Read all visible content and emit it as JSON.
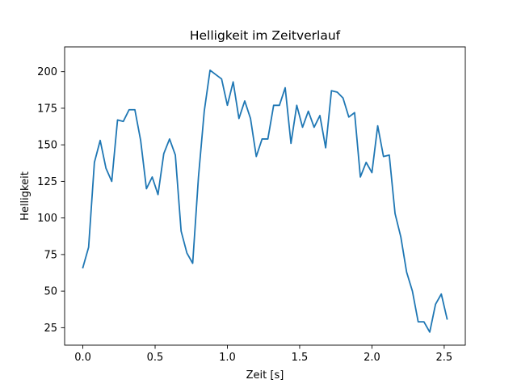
{
  "chart_data": {
    "type": "line",
    "title": "Helligkeit im Zeitverlauf",
    "xlabel": "Zeit [s]",
    "ylabel": "Helligkeit",
    "xlim": [
      -0.126,
      2.646
    ],
    "ylim": [
      13.05,
      216.95
    ],
    "xticks": [
      0.0,
      0.5,
      1.0,
      1.5,
      2.0,
      2.5
    ],
    "xtick_labels": [
      "0.0",
      "0.5",
      "1.0",
      "1.5",
      "2.0",
      "2.5"
    ],
    "yticks": [
      25,
      50,
      75,
      100,
      125,
      150,
      175,
      200
    ],
    "ytick_labels": [
      "25",
      "50",
      "75",
      "100",
      "125",
      "150",
      "175",
      "200"
    ],
    "grid": false,
    "series": [
      {
        "color": "#1f77b4",
        "x": [
          0.0,
          0.04,
          0.08,
          0.12,
          0.16,
          0.2,
          0.24,
          0.28,
          0.32,
          0.36,
          0.4,
          0.44,
          0.48,
          0.52,
          0.56,
          0.6,
          0.64,
          0.68,
          0.72,
          0.76,
          0.8,
          0.84,
          0.88,
          0.92,
          0.96,
          1.0,
          1.04,
          1.08,
          1.12,
          1.16,
          1.2,
          1.24,
          1.28,
          1.32,
          1.36,
          1.4,
          1.44,
          1.48,
          1.52,
          1.56,
          1.6,
          1.64,
          1.68,
          1.72,
          1.76,
          1.8,
          1.84,
          1.88,
          1.92,
          1.96,
          2.0,
          2.04,
          2.08,
          2.12,
          2.16,
          2.2,
          2.24,
          2.28,
          2.32,
          2.36,
          2.4,
          2.44,
          2.48,
          2.52
        ],
        "y": [
          66,
          80,
          138,
          153,
          134,
          125,
          167,
          166,
          174,
          174,
          153,
          120,
          128,
          116,
          144,
          154,
          143,
          91,
          76,
          69,
          128,
          173,
          201,
          198,
          195,
          177,
          193,
          168,
          180,
          168,
          142,
          154,
          154,
          177,
          177,
          189,
          151,
          177,
          162,
          173,
          162,
          170,
          148,
          187,
          186,
          182,
          169,
          172,
          128,
          138,
          131,
          163,
          142,
          143,
          103,
          87,
          63,
          50,
          29,
          29,
          22,
          41,
          48,
          31
        ]
      }
    ]
  }
}
